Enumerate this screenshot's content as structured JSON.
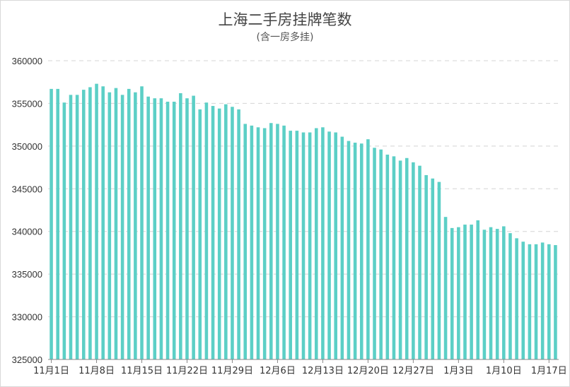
{
  "chart_data": {
    "type": "bar",
    "title": "上海二手房挂牌笔数",
    "subtitle": "(含一房多挂)",
    "ylim": [
      325000,
      360000
    ],
    "yticks": [
      325000,
      330000,
      335000,
      340000,
      345000,
      350000,
      355000,
      360000
    ],
    "grid": true,
    "bar_color": "#5ccfc6",
    "x_tick_labels": [
      "11月1日",
      "11月8日",
      "11月15日",
      "11月22日",
      "11月29日",
      "12月6日",
      "12月13日",
      "12月20日",
      "12月27日",
      "1月3日",
      "1月10日",
      "1月17日"
    ],
    "x_tick_every": 7,
    "values": [
      356700,
      356700,
      355100,
      356000,
      356000,
      356600,
      356900,
      357300,
      357000,
      356300,
      356800,
      356000,
      356700,
      356300,
      357000,
      355800,
      355600,
      355600,
      355200,
      355200,
      356200,
      355600,
      355900,
      354300,
      355100,
      354700,
      354400,
      354900,
      354600,
      354300,
      352600,
      352400,
      352200,
      352100,
      352700,
      352600,
      352400,
      351800,
      351800,
      351600,
      351600,
      352100,
      352200,
      351700,
      351600,
      351100,
      350600,
      350400,
      350300,
      350800,
      349800,
      349600,
      349000,
      348800,
      348300,
      348600,
      348100,
      347700,
      346600,
      346200,
      345800,
      341700,
      340400,
      340500,
      340800,
      340800,
      341300,
      340200,
      340500,
      340300,
      340600,
      339800,
      339200,
      338800,
      338500,
      338500,
      338700,
      338500,
      338400
    ]
  }
}
